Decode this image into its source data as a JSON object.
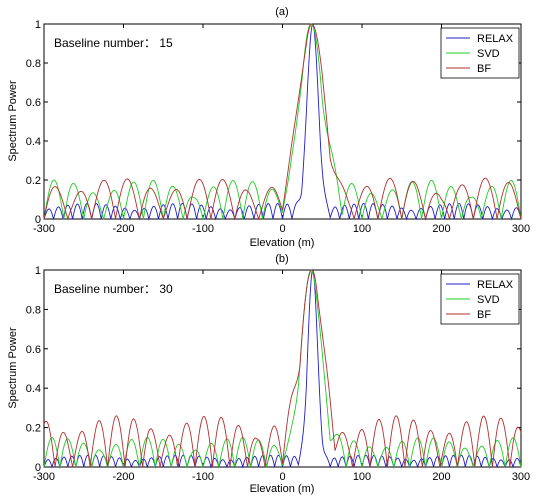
{
  "chart_data": [
    {
      "type": "line",
      "title": "(a)",
      "annotation": "Baseline number： 15",
      "xlabel": "Elevation (m)",
      "ylabel": "Spectrum Power",
      "xlim": [
        -300,
        300
      ],
      "ylim": [
        0,
        1
      ],
      "xticks": [
        "-300",
        "-200",
        "-100",
        "0",
        "100",
        "200",
        "300"
      ],
      "yticks": [
        "0",
        "0.2",
        "0.4",
        "0.6",
        "0.8",
        "1"
      ],
      "legend_position": "top-right",
      "grid": false,
      "series": [
        {
          "name": "RELAX",
          "color": "#1f1fc8",
          "peak": 38,
          "mainlobe": 7,
          "sidelobe": 0.08,
          "sl_period": 12
        },
        {
          "name": "SVD",
          "color": "#22cc22",
          "peak": 36,
          "mainlobe": 14,
          "sidelobe": 0.2,
          "sl_period": 25
        },
        {
          "name": "BF",
          "color": "#b03030",
          "peak": 37,
          "mainlobe": 15,
          "sidelobe": 0.21,
          "sl_period": 30
        }
      ]
    },
    {
      "type": "line",
      "title": "(b)",
      "annotation": "Baseline number： 30",
      "xlabel": "Elevation (m)",
      "ylabel": "Spectrum Power",
      "xlim": [
        -300,
        300
      ],
      "ylim": [
        0,
        1
      ],
      "xticks": [
        "-300",
        "-200",
        "-100",
        "0",
        "100",
        "200",
        "300"
      ],
      "yticks": [
        "0",
        "0.2",
        "0.4",
        "0.6",
        "0.8",
        "1"
      ],
      "legend_position": "top-right",
      "grid": false,
      "series": [
        {
          "name": "RELAX",
          "color": "#1f1fc8",
          "peak": 38,
          "mainlobe": 6,
          "sidelobe": 0.06,
          "sl_period": 10
        },
        {
          "name": "SVD",
          "color": "#22cc22",
          "peak": 36,
          "mainlobe": 12,
          "sidelobe": 0.15,
          "sl_period": 20
        },
        {
          "name": "BF",
          "color": "#b03030",
          "peak": 37,
          "mainlobe": 13,
          "sidelobe": 0.26,
          "sl_period": 22
        }
      ]
    }
  ]
}
